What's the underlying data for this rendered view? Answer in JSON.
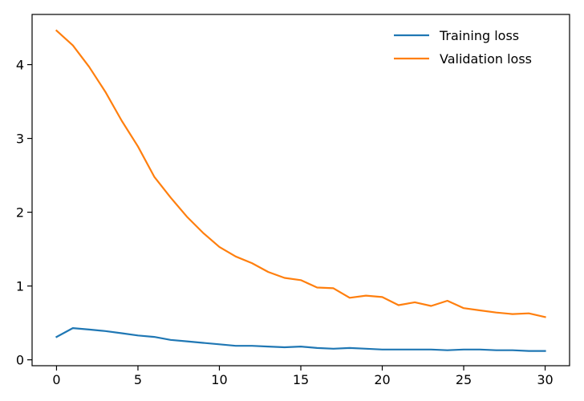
{
  "chart_data": {
    "type": "line",
    "title": "",
    "xlabel": "",
    "ylabel": "",
    "xlim": [
      -1.5,
      31.5
    ],
    "ylim": [
      -0.08,
      4.68
    ],
    "xticks": [
      0,
      5,
      10,
      15,
      20,
      25,
      30
    ],
    "yticks": [
      0,
      1,
      2,
      3,
      4
    ],
    "x_tick_labels": [
      "0",
      "5",
      "10",
      "15",
      "20",
      "25",
      "30"
    ],
    "y_tick_labels": [
      "0",
      "1",
      "2",
      "3",
      "4"
    ],
    "grid": false,
    "legend_position": "top-right",
    "x": [
      0,
      1,
      2,
      3,
      4,
      5,
      6,
      7,
      8,
      9,
      10,
      11,
      12,
      13,
      14,
      15,
      16,
      17,
      18,
      19,
      20,
      21,
      22,
      23,
      24,
      25,
      26,
      27,
      28,
      29,
      30
    ],
    "series": [
      {
        "name": "Training loss",
        "color": "#1f77b4",
        "values": [
          0.31,
          0.43,
          0.41,
          0.39,
          0.36,
          0.33,
          0.31,
          0.27,
          0.25,
          0.23,
          0.21,
          0.19,
          0.19,
          0.18,
          0.17,
          0.18,
          0.16,
          0.15,
          0.16,
          0.15,
          0.14,
          0.14,
          0.14,
          0.14,
          0.13,
          0.14,
          0.14,
          0.13,
          0.13,
          0.12,
          0.12
        ]
      },
      {
        "name": "Validation loss",
        "color": "#ff7f0e",
        "values": [
          4.46,
          4.26,
          3.97,
          3.63,
          3.24,
          2.89,
          2.48,
          2.2,
          1.94,
          1.72,
          1.53,
          1.4,
          1.31,
          1.19,
          1.11,
          1.08,
          0.98,
          0.97,
          0.84,
          0.87,
          0.85,
          0.74,
          0.78,
          0.73,
          0.8,
          0.7,
          0.67,
          0.64,
          0.62,
          0.63,
          0.58
        ]
      }
    ]
  }
}
